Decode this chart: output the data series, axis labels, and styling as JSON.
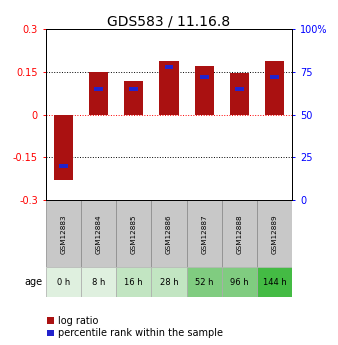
{
  "title": "GDS583 / 11.16.8",
  "samples": [
    "GSM12883",
    "GSM12884",
    "GSM12885",
    "GSM12886",
    "GSM12887",
    "GSM12888",
    "GSM12889"
  ],
  "log_ratios": [
    -0.23,
    0.15,
    0.12,
    0.19,
    0.17,
    0.145,
    0.19
  ],
  "percentile_ranks": [
    20,
    65,
    65,
    78,
    72,
    65,
    72
  ],
  "age_labels": [
    "0 h",
    "8 h",
    "16 h",
    "28 h",
    "52 h",
    "96 h",
    "144 h"
  ],
  "age_colors": [
    "#dff0df",
    "#dff0df",
    "#c2e5c2",
    "#c2e5c2",
    "#80cc80",
    "#80cc80",
    "#44bb44"
  ],
  "bar_color_red": "#aa1111",
  "bar_color_blue": "#2222cc",
  "ylim_left": [
    -0.3,
    0.3
  ],
  "ylim_right": [
    0,
    100
  ],
  "yticks_left": [
    -0.3,
    -0.15,
    0,
    0.15,
    0.3
  ],
  "yticks_right": [
    0,
    25,
    50,
    75,
    100
  ],
  "bg_color": "#ffffff",
  "sample_bg": "#c8c8c8",
  "title_fontsize": 10,
  "tick_fontsize": 7,
  "label_fontsize": 7,
  "legend_fontsize": 7
}
